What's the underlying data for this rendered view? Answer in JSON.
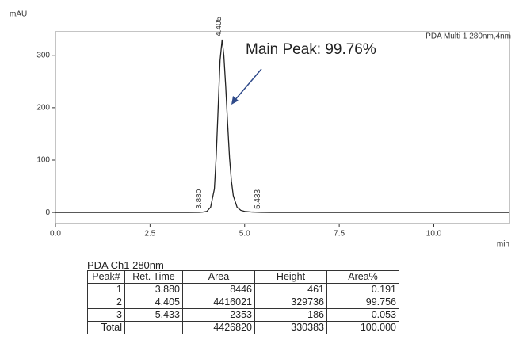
{
  "chart_data": {
    "type": "line",
    "y_unit": "mAU",
    "x_label": "min",
    "legend_text": "PDA Multi 1 280nm,4nm",
    "annotation": "Main Peak: 99.76%",
    "x": [
      0,
      3.5,
      3.8,
      3.88,
      4.0,
      4.1,
      4.2,
      4.25,
      4.3,
      4.35,
      4.405,
      4.45,
      4.5,
      4.55,
      4.6,
      4.65,
      4.7,
      4.8,
      4.9,
      5.0,
      5.2,
      5.433,
      5.7,
      6.0,
      12
    ],
    "series": [
      {
        "name": "PDA Multi 1 280nm,4nm",
        "color": "#222222",
        "values": [
          0,
          0,
          0.3,
          0.6,
          2,
          10,
          45,
          110,
          200,
          290,
          330,
          300,
          240,
          170,
          105,
          60,
          32,
          10,
          4,
          2,
          0.8,
          0.3,
          0.1,
          0,
          0
        ]
      }
    ],
    "peak_labels": [
      {
        "value": 3.88,
        "label": "3.880"
      },
      {
        "value": 4.405,
        "label": "4.405"
      },
      {
        "value": 5.433,
        "label": "5.433"
      }
    ],
    "xlim": [
      0,
      12
    ],
    "ylim": [
      -21,
      345
    ],
    "xticks": [
      {
        "value": 0,
        "label": "0.0"
      },
      {
        "value": 2.5,
        "label": "2.5"
      },
      {
        "value": 5,
        "label": "5.0"
      },
      {
        "value": 7.5,
        "label": "7.5"
      },
      {
        "value": 10,
        "label": "10.0"
      }
    ],
    "yticks": [
      0,
      100,
      200,
      300
    ],
    "grid": false
  },
  "table": {
    "title": "PDA Ch1 280nm",
    "header": [
      "Peak#",
      "Ret. Time",
      "Area",
      "Height",
      "Area%"
    ],
    "rows": [
      [
        "1",
        "3.880",
        "8446",
        "461",
        "0.191"
      ],
      [
        "2",
        "4.405",
        "4416021",
        "329736",
        "99.756"
      ],
      [
        "3",
        "5.433",
        "2353",
        "186",
        "0.053"
      ],
      [
        "Total",
        "",
        "4426820",
        "330383",
        "100.000"
      ]
    ]
  }
}
